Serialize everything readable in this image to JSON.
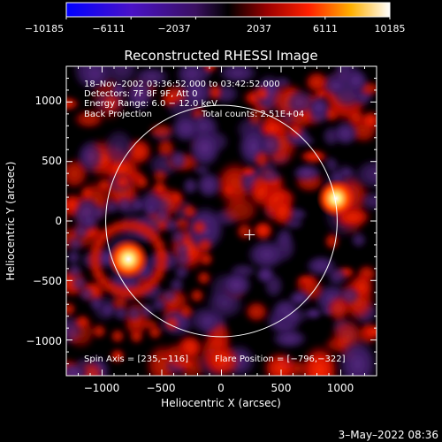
{
  "colorbar": {
    "ticks": [
      -10185,
      -6111,
      -2037,
      2037,
      6111,
      10185
    ],
    "tick_labels": [
      "−10185",
      "−6111",
      "−2037",
      "2037",
      "6111",
      "10185"
    ]
  },
  "title": "Reconstructed RHESSI Image",
  "annotations": {
    "line1": "18–Nov–2002 03:36:52.000 to 03:42:52.000",
    "line2": "Detectors: 7F 8F 9F, Att 0",
    "line3": "Energy Range: 6.0 − 12.0 keV",
    "line4a": "Back Projection",
    "line4b": "Total counts: 2.51E+04",
    "spin_axis": "Spin Axis = [235,−116]",
    "flare_position": "Flare Position = [−796,−322]"
  },
  "footer": {
    "timestamp": "3–May–2022 08:36"
  },
  "chart_data": {
    "type": "heatmap",
    "title": "Reconstructed RHESSI Image",
    "xlabel": "Heliocentric X (arcsec)",
    "ylabel": "Heliocentric Y (arcsec)",
    "xlim": [
      -1300,
      1300
    ],
    "ylim": [
      -1300,
      1300
    ],
    "x_ticks": [
      -1000,
      -500,
      0,
      500,
      1000
    ],
    "x_tick_labels": [
      "−1000",
      "−500",
      "0",
      "500",
      "1000"
    ],
    "y_ticks": [
      -1000,
      -500,
      0,
      500,
      1000
    ],
    "y_tick_labels": [
      "−1000",
      "−500",
      "0",
      "500",
      "1000"
    ],
    "color_range": [
      -10185,
      10185
    ],
    "colormap": "blue-purple-black-red-orange-yellow-white",
    "solar_disk": {
      "center": [
        0,
        0
      ],
      "radius_arcsec": 970
    },
    "spin_axis": [
      235,
      -116
    ],
    "flare_position": [
      -796,
      -322
    ],
    "sources": [
      {
        "x": -780,
        "y": -320,
        "intensity": 10000
      },
      {
        "x": 960,
        "y": 190,
        "intensity": 8200
      }
    ],
    "colors": {
      "background": "#000000",
      "positive_bright": "#ffff80",
      "positive": "#ff1a00",
      "negative": "#4a2070"
    }
  }
}
